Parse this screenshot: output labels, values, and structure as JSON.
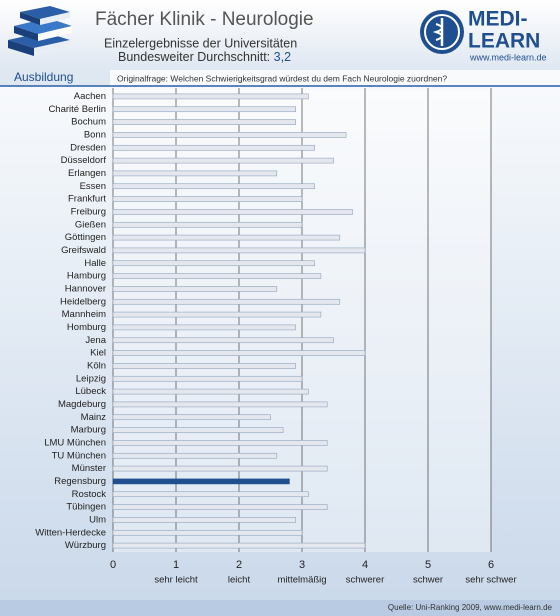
{
  "chart_data": {
    "type": "bar",
    "orientation": "horizontal",
    "title": "Fächer Klinik - Neurologie",
    "subtitle": "Einzelergebnisse der Universitäten",
    "average_text": "Bundesweiter Durchschnitt:",
    "average_value": "3,2",
    "section": "Ausbildung",
    "question": "Originalfrage: Welchen Schwierigkeitsgrad würdest du dem Fach Neurologie zuordnen?",
    "source": "Quelle: Uni-Ranking 2009, www.medi-learn.de",
    "logo_top": "MEDI-",
    "logo_bottom": "LEARN",
    "logo_url": "www.medi-learn.de",
    "categories": [
      "Aachen",
      "Charité Berlin",
      "Bochum",
      "Bonn",
      "Dresden",
      "Düsseldorf",
      "Erlangen",
      "Essen",
      "Frankfurt",
      "Freiburg",
      "Gießen",
      "Göttingen",
      "Greifswald",
      "Halle",
      "Hamburg",
      "Hannover",
      "Heidelberg",
      "Mannheim",
      "Homburg",
      "Jena",
      "Kiel",
      "Köln",
      "Leipzig",
      "Lübeck",
      "Magdeburg",
      "Mainz",
      "Marburg",
      "LMU München",
      "TU München",
      "Münster",
      "Regensburg",
      "Rostock",
      "Tübingen",
      "Ulm",
      "Witten-Herdecke",
      "Würzburg"
    ],
    "values": [
      3.1,
      2.9,
      2.9,
      3.7,
      3.2,
      3.5,
      2.6,
      3.2,
      3.0,
      3.8,
      3.0,
      3.6,
      4.0,
      3.2,
      3.3,
      2.6,
      3.6,
      3.3,
      2.9,
      3.5,
      4.0,
      2.9,
      3.0,
      3.1,
      3.4,
      2.5,
      2.7,
      3.4,
      2.6,
      3.4,
      2.8,
      3.1,
      3.4,
      2.9,
      3.0,
      4.0
    ],
    "color": "#e4e8ee",
    "highlight": "Regensburg",
    "highlight_color": "#1f4f8f",
    "xlim": [
      0,
      6
    ],
    "xticks": [
      0,
      1,
      2,
      3,
      4,
      5,
      6
    ],
    "scale_labels": [
      {
        "value": 1,
        "label": "sehr leicht"
      },
      {
        "value": 2,
        "label": "leicht"
      },
      {
        "value": 3,
        "label": "mittelmäßig"
      },
      {
        "value": 4,
        "label": "schwerer"
      },
      {
        "value": 5,
        "label": "schwer"
      },
      {
        "value": 6,
        "label": "sehr schwer"
      }
    ],
    "grid": true
  }
}
